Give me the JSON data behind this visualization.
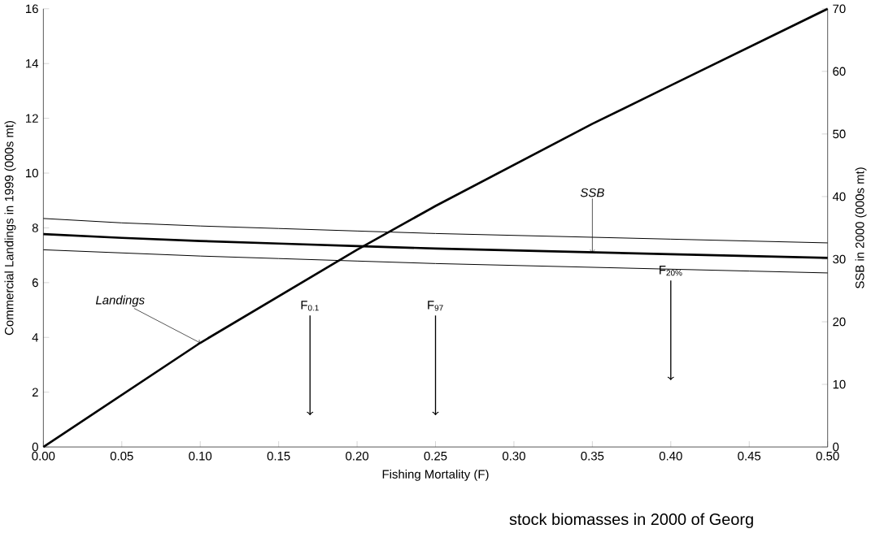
{
  "chart_data": {
    "type": "line",
    "xlabel": "Fishing Mortality (F)",
    "ylabel": "Commercial Landings in 1999 (000s mt)",
    "y2label": "SSB in 2000 (000s mt)",
    "x": [
      0.0,
      0.05,
      0.1,
      0.15,
      0.2,
      0.25,
      0.3,
      0.35,
      0.4,
      0.45,
      0.5
    ],
    "series": [
      {
        "name": "Landings",
        "color": "#000000",
        "values": [
          0,
          1.9,
          3.8,
          5.5,
          7.2,
          8.8,
          10.3,
          11.8,
          13.2,
          14.6,
          16
        ]
      },
      {
        "name": "SSB",
        "color": "#000000",
        "axis": "y2",
        "values": [
          34,
          33.4,
          32.9,
          32.5,
          32.1,
          31.7,
          31.4,
          31.1,
          30.8,
          30.5,
          30.2
        ]
      },
      {
        "color": "#000000",
        "axis": "y2",
        "values": [
          31.5,
          31,
          30.5,
          30.1,
          29.7,
          29.3,
          29,
          28.7,
          28.4,
          28.1,
          27.8
        ]
      },
      {
        "color": "#000000",
        "axis": "y2",
        "values": [
          36.5,
          35.8,
          35.3,
          34.9,
          34.5,
          34.1,
          33.8,
          33.5,
          33.2,
          32.9,
          32.6
        ]
      }
    ],
    "xlim": [
      0,
      0.5
    ],
    "ylim": [
      0,
      16
    ],
    "y2lim": [
      0,
      70
    ],
    "xticks": [
      {
        "value": 0,
        "label": "0.00"
      },
      {
        "value": 0.05,
        "label": "0.05"
      },
      {
        "value": 0.1,
        "label": "0.10"
      },
      {
        "value": 0.15,
        "label": "0.15"
      },
      {
        "value": 0.2,
        "label": "0.20"
      },
      {
        "value": 0.25,
        "label": "0.25"
      },
      {
        "value": 0.3,
        "label": "0.30"
      },
      {
        "value": 0.35,
        "label": "0.35"
      },
      {
        "value": 0.4,
        "label": "0.40"
      },
      {
        "value": 0.45,
        "label": "0.45"
      },
      {
        "value": 0.5,
        "label": "0.50"
      }
    ],
    "yticks": [
      0,
      2,
      4,
      6,
      8,
      10,
      12,
      14,
      16
    ],
    "y2ticks": [
      0,
      10,
      20,
      30,
      40,
      50,
      60,
      70
    ],
    "annotations": [
      "F$_{0.1}$",
      "F$_{97}$",
      "F$_{20%}$",
      "stock biomasses in 2000 of Georg"
    ],
    "grid": false,
    "marker": "none",
    "line_style": "solid"
  }
}
